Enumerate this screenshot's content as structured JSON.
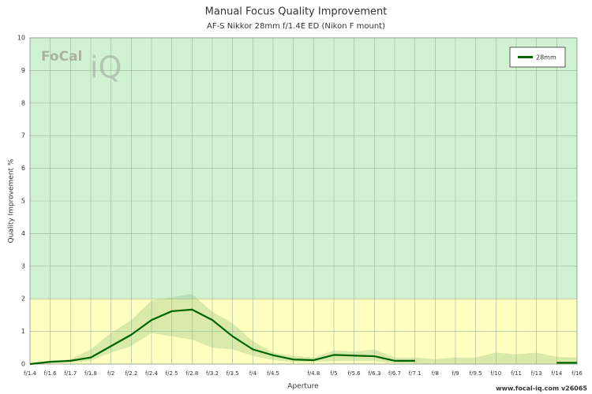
{
  "chart_data": {
    "type": "line",
    "title": "Manual Focus Quality Improvement",
    "subtitle": "AF-S Nikkor 28mm f/1.4E ED (Nikon F mount)",
    "x_label": "Aperture",
    "y_label": "Quality Improvement %",
    "watermark": {
      "left": "FoCal",
      "right": "iQ"
    },
    "footer": "www.focal-iq.com  v26065",
    "categories": [
      "f/1.4",
      "f/1.6",
      "f/1.7",
      "f/1.8",
      "f/2",
      "f/2.2",
      "f/2.4",
      "f/2.5",
      "f/2.8",
      "f/3.2",
      "f/3.5",
      "f/4",
      "f/4.5",
      null,
      "f/4.8",
      "f/5",
      "f/5.6",
      "f/6.3",
      "f/6.7",
      "f/7.1",
      "f/8",
      "f/9",
      "f/9.5",
      "f/10",
      "f/11",
      "f/13",
      "f/14",
      "f/16"
    ],
    "series": [
      {
        "name": "28mm",
        "color": "#006400",
        "values": [
          0,
          0.07,
          0.1,
          0.2,
          0.55,
          0.9,
          1.35,
          1.62,
          1.67,
          1.35,
          0.85,
          0.45,
          0.27,
          0.14,
          0.12,
          0.28,
          0.26,
          0.24,
          0.1,
          0.1,
          null,
          null,
          null,
          null,
          null,
          null,
          0.04,
          0.04
        ]
      }
    ],
    "band": {
      "color": "#8fbf80",
      "upper": [
        0,
        0.05,
        0.15,
        0.45,
        0.95,
        1.35,
        1.95,
        2.05,
        2.15,
        1.6,
        1.25,
        0.7,
        0.35,
        0.25,
        0.2,
        0.42,
        0.38,
        0.45,
        0.2,
        0.2,
        0.15,
        0.2,
        0.2,
        0.35,
        0.3,
        0.35,
        0.22,
        0.2
      ],
      "lower": [
        0,
        0.02,
        0.05,
        0.1,
        0.35,
        0.55,
        0.95,
        0.85,
        0.75,
        0.5,
        0.45,
        0.25,
        0.12,
        0.07,
        0.06,
        0.1,
        0.1,
        0.1,
        0.02,
        0.02,
        0,
        0,
        0,
        0,
        0,
        0,
        0,
        0
      ]
    },
    "zones": [
      {
        "from": 0,
        "to": 2,
        "color": "#ffffc0"
      },
      {
        "from": 2,
        "to": 10,
        "color": "#d0f2d0"
      }
    ],
    "ylim": [
      0,
      10
    ],
    "yticks": [
      0,
      1,
      2,
      3,
      4,
      5,
      6,
      7,
      8,
      9,
      10
    ],
    "grid": true,
    "legend": "top-right"
  }
}
